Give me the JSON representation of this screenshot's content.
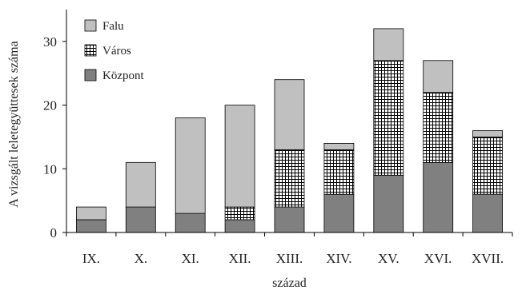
{
  "chart_data": {
    "type": "bar",
    "stacked": true,
    "categories": [
      "IX.",
      "X.",
      "XI.",
      "XII.",
      "XIII.",
      "XIV.",
      "XV.",
      "XVI.",
      "XVII."
    ],
    "series": [
      {
        "name": "Központ",
        "color": "#808080",
        "pattern": "solid",
        "values": [
          2,
          4,
          3,
          2,
          4,
          6,
          9,
          11,
          6
        ]
      },
      {
        "name": "Város",
        "color": "#ffffff",
        "pattern": "grid",
        "values": [
          0,
          0,
          0,
          2,
          9,
          7,
          18,
          11,
          9
        ]
      },
      {
        "name": "Falu",
        "color": "#c0c0c0",
        "pattern": "solid",
        "values": [
          2,
          7,
          15,
          16,
          11,
          1,
          5,
          5,
          1
        ]
      }
    ],
    "legend_order": [
      "Falu",
      "Város",
      "Központ"
    ],
    "legend_position": "top-left",
    "xlabel": "század",
    "ylabel": "A vizsgált leletegyüttesek száma",
    "ylim": [
      0,
      35
    ],
    "yticks": [
      0,
      10,
      20,
      30
    ],
    "grid": false
  }
}
